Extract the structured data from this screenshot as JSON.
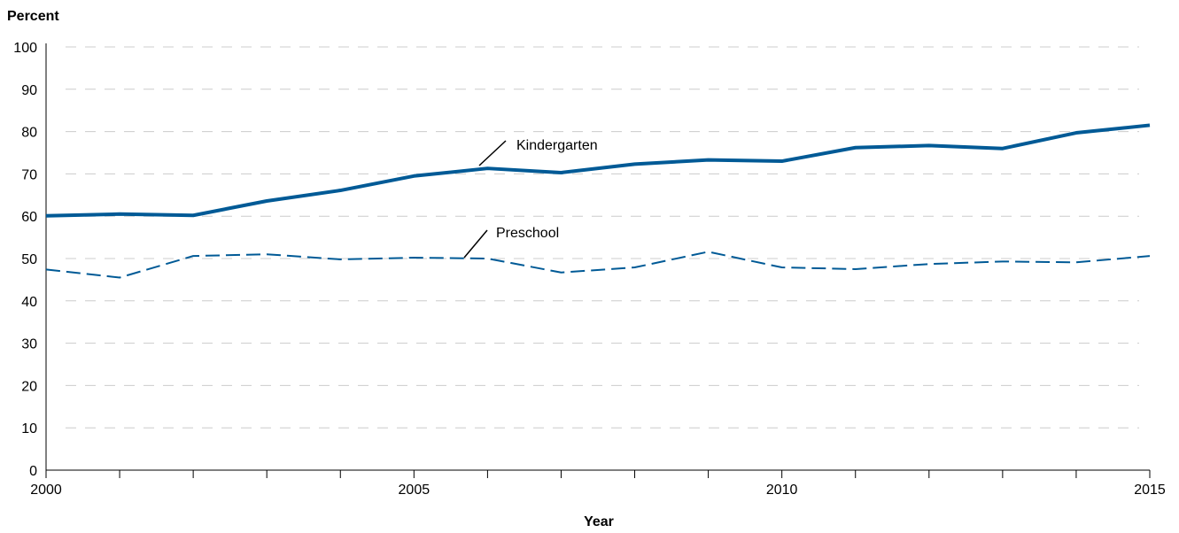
{
  "chart_data": {
    "type": "line",
    "ylabel": "Percent",
    "xlabel": "Year",
    "xlim": [
      2000,
      2015
    ],
    "ylim": [
      0,
      100
    ],
    "yticks": [
      "0",
      "10",
      "20",
      "30",
      "40",
      "50",
      "60",
      "70",
      "80",
      "90",
      "100"
    ],
    "xticks": [
      "2000",
      "2005",
      "2010",
      "2015"
    ],
    "grid": "horizontal dashed",
    "colors": {
      "series": "#005a96",
      "grid": "#cccccc",
      "axis": "#000000"
    },
    "x": [
      2000,
      2001,
      2002,
      2003,
      2004,
      2005,
      2006,
      2007,
      2008,
      2009,
      2010,
      2011,
      2012,
      2013,
      2014,
      2015
    ],
    "series": [
      {
        "name": "Kindergarten",
        "style": "solid",
        "values": [
          60.1,
          60.5,
          60.2,
          63.6,
          66.1,
          69.5,
          71.3,
          70.3,
          72.3,
          73.3,
          73.0,
          76.2,
          76.7,
          76.0,
          79.7,
          81.5
        ]
      },
      {
        "name": "Preschool",
        "style": "dashed",
        "values": [
          47.4,
          45.5,
          50.6,
          51.0,
          49.8,
          50.2,
          50.0,
          46.7,
          47.9,
          51.6,
          47.9,
          47.5,
          48.7,
          49.3,
          49.1,
          50.6
        ]
      }
    ]
  }
}
